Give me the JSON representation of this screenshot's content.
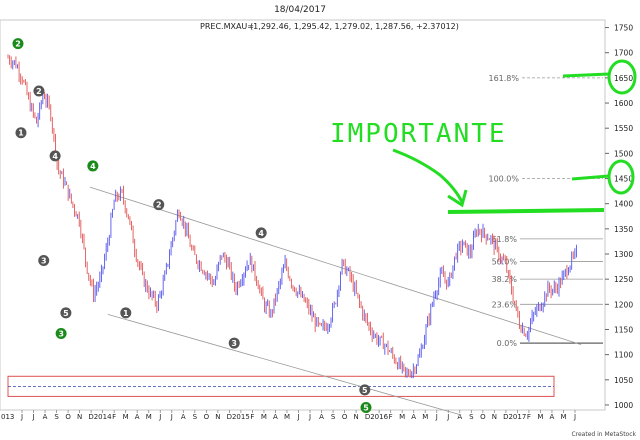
{
  "date_label": "18/04/2017",
  "symbol_label": "PREC.MXAU=",
  "ohlc_label": "(1,292.46, 1,295.42, 1,279.02, 1,287.56, +2.37012)",
  "credit": "Created in MetaStock",
  "annotation_text": "IMPORTANTE",
  "colors": {
    "up": "#5555ee",
    "down": "#e05555",
    "fib": "#888888",
    "channel": "#999999",
    "highlight": "#22dd22",
    "box": "#e05050",
    "wave_gray": "#555555",
    "wave_green": "#1a8a1a"
  },
  "chart_data": {
    "type": "candlestick",
    "y_ticks": [
      1000,
      1050,
      1100,
      1150,
      1200,
      1250,
      1300,
      1350,
      1400,
      1450,
      1500,
      1550,
      1600,
      1650,
      1700,
      1750
    ],
    "ylim": [
      990,
      1765
    ],
    "x_labels": [
      "J",
      "J",
      "A",
      "S",
      "O",
      "N",
      "D",
      "2014",
      "F",
      "M",
      "A",
      "M",
      "J",
      "J",
      "A",
      "S",
      "O",
      "N",
      "D",
      "2015",
      "F",
      "M",
      "A",
      "M",
      "J",
      "J",
      "A",
      "S",
      "O",
      "N",
      "D",
      "2016",
      "F",
      "M",
      "A",
      "M",
      "J",
      "J",
      "A",
      "S",
      "O",
      "N",
      "D",
      "2017",
      "F",
      "M",
      "A",
      "M",
      "J"
    ],
    "x_first_partial": "013",
    "right_year_label": "2017",
    "right_months": [
      "F",
      "M",
      "A",
      "M",
      "J"
    ],
    "price_path": [
      1690,
      1680,
      1650,
      1600,
      1560,
      1620,
      1580,
      1470,
      1440,
      1400,
      1370,
      1280,
      1220,
      1250,
      1320,
      1410,
      1420,
      1370,
      1300,
      1250,
      1220,
      1200,
      1250,
      1320,
      1390,
      1350,
      1300,
      1280,
      1260,
      1240,
      1300,
      1280,
      1230,
      1260,
      1290,
      1250,
      1200,
      1180,
      1230,
      1280,
      1240,
      1220,
      1200,
      1170,
      1150,
      1160,
      1200,
      1280,
      1260,
      1220,
      1180,
      1150,
      1130,
      1120,
      1100,
      1080,
      1060,
      1070,
      1100,
      1160,
      1220,
      1260,
      1240,
      1300,
      1320,
      1300,
      1350,
      1340,
      1330,
      1300,
      1280,
      1220,
      1160,
      1140,
      1180,
      1200,
      1230,
      1230,
      1250,
      1280,
      1300
    ],
    "fib_levels": [
      {
        "label": "161.8%",
        "value": 1650
      },
      {
        "label": "100.0%",
        "value": 1450
      },
      {
        "label": "61.8%",
        "value": 1330
      },
      {
        "label": "50.0%",
        "value": 1285
      },
      {
        "label": "38.2%",
        "value": 1250
      },
      {
        "label": "23.6%",
        "value": 1200
      },
      {
        "label": "0.0%",
        "value": 1123
      }
    ],
    "channel_upper": [
      [
        0.14,
        1433
      ],
      [
        0.96,
        1120
      ]
    ],
    "channel_lower": [
      [
        0.17,
        1180
      ],
      [
        0.76,
        980
      ]
    ],
    "support_zone": [
      1017,
      1057
    ],
    "wave_labels": [
      {
        "text": "2",
        "x": 0.02,
        "y": 1718,
        "style": "green"
      },
      {
        "text": "2",
        "x": 0.055,
        "y": 1624,
        "style": "gray"
      },
      {
        "text": "1",
        "x": 0.025,
        "y": 1541,
        "style": "gray"
      },
      {
        "text": "4",
        "x": 0.082,
        "y": 1495,
        "style": "gray"
      },
      {
        "text": "4",
        "x": 0.145,
        "y": 1475,
        "style": "green"
      },
      {
        "text": "2",
        "x": 0.255,
        "y": 1398,
        "style": "gray"
      },
      {
        "text": "4",
        "x": 0.426,
        "y": 1342,
        "style": "gray"
      },
      {
        "text": "3",
        "x": 0.063,
        "y": 1287,
        "style": "gray"
      },
      {
        "text": "5",
        "x": 0.1,
        "y": 1183,
        "style": "gray"
      },
      {
        "text": "1",
        "x": 0.2,
        "y": 1183,
        "style": "gray"
      },
      {
        "text": "3",
        "x": 0.092,
        "y": 1142,
        "style": "green"
      },
      {
        "text": "3",
        "x": 0.381,
        "y": 1123,
        "style": "gray"
      },
      {
        "text": "5",
        "x": 0.599,
        "y": 1030,
        "style": "gray"
      },
      {
        "text": "5",
        "x": 0.601,
        "y": 995,
        "style": "green"
      }
    ]
  }
}
